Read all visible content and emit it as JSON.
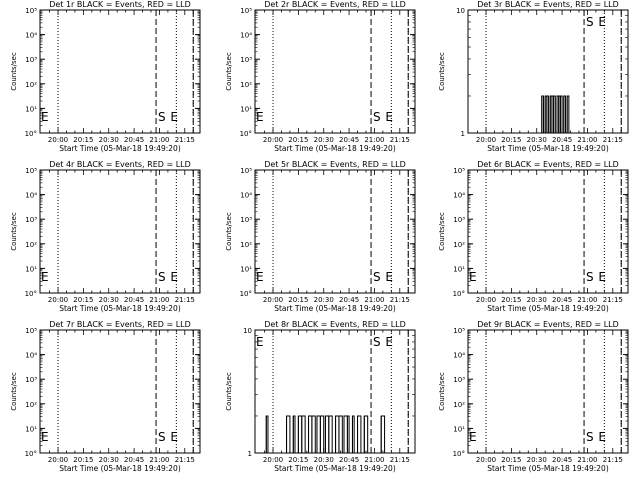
{
  "figure": {
    "xtick_labels": [
      "20:00",
      "20:15",
      "20:30",
      "20:45",
      "21:00",
      "21:15"
    ],
    "xlabel": "Start Time (05-Mar-18 19:49:20)",
    "ylabel": "Counts/sec",
    "log_ticks": [
      "10°",
      "10¹",
      "10²",
      "10³",
      "10⁴",
      "10⁵"
    ],
    "lin_ticks": [
      "1",
      "10"
    ],
    "marker_S": "S",
    "marker_E": "E"
  },
  "chart_data": [
    {
      "type": "line",
      "title": "Det 1r BLACK = Events, RED = LLD",
      "yscale": "log",
      "ylim": [
        1,
        100000
      ],
      "xlim": [
        "19:49:20",
        "21:24:00"
      ],
      "series": [],
      "vlines": {
        "dotted": [
          "20:00",
          "21:10",
          "21:20"
        ],
        "dashed": [
          "20:58",
          "21:20"
        ]
      },
      "labels": {
        "S": true,
        "E": true,
        "E_left": true
      }
    },
    {
      "type": "line",
      "title": "Det 2r BLACK = Events, RED = LLD",
      "yscale": "log",
      "ylim": [
        1,
        100000
      ],
      "xlim": [
        "19:49:20",
        "21:24:00"
      ],
      "series": [],
      "vlines": {
        "dotted": [
          "20:00",
          "21:10",
          "21:20"
        ],
        "dashed": [
          "20:58",
          "21:20"
        ]
      },
      "labels": {
        "S": true,
        "E": true,
        "E_left": true
      }
    },
    {
      "type": "line",
      "title": "Det 3r BLACK = Events, RED = LLD",
      "yscale": "linear-log",
      "ylim": [
        1,
        10
      ],
      "xlim": [
        "19:49:20",
        "21:24:00"
      ],
      "series": [
        {
          "x": [
            "20:32",
            "20:33",
            "20:34",
            "20:35",
            "20:36",
            "20:37",
            "20:38",
            "20:39",
            "20:40",
            "20:41",
            "20:42",
            "20:43",
            "20:44",
            "20:45",
            "20:46",
            "20:47",
            "20:48",
            "20:49"
          ],
          "y": [
            1,
            2,
            1,
            2,
            2,
            1,
            2,
            2,
            2,
            1,
            2,
            2,
            2,
            1,
            2,
            1,
            2,
            1
          ]
        }
      ],
      "vlines": {
        "dotted": [
          "20:00",
          "21:10",
          "21:20"
        ],
        "dashed": [
          "20:58",
          "21:20"
        ]
      },
      "labels": {
        "S": true,
        "E": true,
        "E_left": false
      }
    },
    {
      "type": "line",
      "title": "Det 4r BLACK = Events, RED = LLD",
      "yscale": "log",
      "ylim": [
        1,
        100000
      ],
      "xlim": [
        "19:49:20",
        "21:24:00"
      ],
      "series": [],
      "vlines": {
        "dotted": [
          "20:00",
          "21:10",
          "21:20"
        ],
        "dashed": [
          "20:58",
          "21:20"
        ]
      },
      "labels": {
        "S": true,
        "E": true,
        "E_left": true
      }
    },
    {
      "type": "line",
      "title": "Det 5r BLACK = Events, RED = LLD",
      "yscale": "log",
      "ylim": [
        1,
        100000
      ],
      "xlim": [
        "19:49:20",
        "21:24:00"
      ],
      "series": [],
      "vlines": {
        "dotted": [
          "20:00",
          "21:10",
          "21:20"
        ],
        "dashed": [
          "20:58",
          "21:20"
        ]
      },
      "labels": {
        "S": true,
        "E": true,
        "E_left": true
      }
    },
    {
      "type": "line",
      "title": "Det 6r BLACK = Events, RED = LLD",
      "yscale": "log",
      "ylim": [
        1,
        100000
      ],
      "xlim": [
        "19:49:20",
        "21:24:00"
      ],
      "series": [],
      "vlines": {
        "dotted": [
          "20:00",
          "21:10",
          "21:20"
        ],
        "dashed": [
          "20:58",
          "21:20"
        ]
      },
      "labels": {
        "S": true,
        "E": true,
        "E_left": true
      }
    },
    {
      "type": "line",
      "title": "Det 7r BLACK = Events, RED = LLD",
      "yscale": "log",
      "ylim": [
        1,
        100000
      ],
      "xlim": [
        "19:49:20",
        "21:24:00"
      ],
      "series": [],
      "vlines": {
        "dotted": [
          "20:00",
          "21:10",
          "21:20"
        ],
        "dashed": [
          "20:58",
          "21:20"
        ]
      },
      "labels": {
        "S": true,
        "E": true,
        "E_left": true
      }
    },
    {
      "type": "line",
      "title": "Det 8r BLACK = Events, RED = LLD",
      "yscale": "linear-log",
      "ylim": [
        1,
        10
      ],
      "xlim": [
        "19:49:20",
        "21:24:00"
      ],
      "series": [
        {
          "x": [
            "19:56",
            "19:57",
            "20:08",
            "20:10",
            "20:12",
            "20:13",
            "20:15",
            "20:17",
            "20:19",
            "20:21",
            "20:23",
            "20:25",
            "20:26",
            "20:28",
            "20:30",
            "20:31",
            "20:33",
            "20:35",
            "20:37",
            "20:39",
            "20:41",
            "20:42",
            "20:44",
            "20:45",
            "20:47",
            "20:48",
            "20:50",
            "20:52",
            "20:54",
            "20:56",
            "21:04",
            "21:06"
          ],
          "y": [
            2,
            1,
            2,
            1,
            2,
            1,
            2,
            2,
            1,
            2,
            2,
            1,
            2,
            2,
            1,
            2,
            2,
            1,
            2,
            2,
            1,
            2,
            2,
            1,
            2,
            1,
            2,
            1,
            2,
            1,
            2,
            1
          ]
        }
      ],
      "vlines": {
        "dotted": [
          "20:00",
          "21:10",
          "21:20"
        ],
        "dashed": [
          "20:58",
          "21:20"
        ]
      },
      "labels": {
        "S": true,
        "E": true,
        "E_left": true
      }
    },
    {
      "type": "line",
      "title": "Det 9r BLACK = Events, RED = LLD",
      "yscale": "log",
      "ylim": [
        1,
        100000
      ],
      "xlim": [
        "19:49:20",
        "21:24:00"
      ],
      "series": [],
      "vlines": {
        "dotted": [
          "20:00",
          "21:10",
          "21:20"
        ],
        "dashed": [
          "20:58",
          "21:20"
        ]
      },
      "labels": {
        "S": true,
        "E": true,
        "E_left": true
      }
    }
  ]
}
